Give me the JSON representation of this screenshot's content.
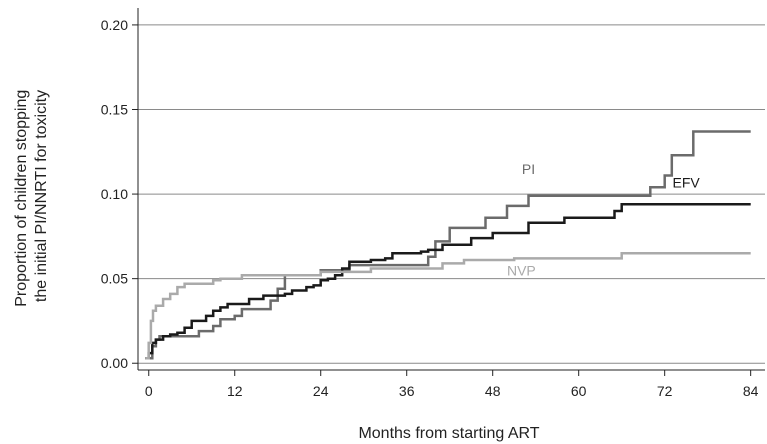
{
  "chart_data": {
    "type": "line",
    "step": true,
    "xlabel": "Months from starting ART",
    "ylabel_lines": [
      "Proportion of children stopping",
      "the initial PI/NNRTI for toxicity"
    ],
    "xlim": [
      -1.5,
      86
    ],
    "ylim": [
      -0.004,
      0.21
    ],
    "xticks": [
      0,
      12,
      24,
      36,
      48,
      60,
      72,
      84
    ],
    "xtick_labels": [
      "0",
      "12",
      "24",
      "36",
      "48",
      "60",
      "72",
      "84"
    ],
    "yticks": [
      0.0,
      0.05,
      0.1,
      0.15,
      0.2
    ],
    "ytick_labels": [
      "0.00",
      "0.05",
      "0.10",
      "0.15",
      "0.20"
    ],
    "grid": "horizontal",
    "series": [
      {
        "name": "PI",
        "color": "#6b6b6b",
        "label_at": [
          53,
          0.112
        ],
        "points": [
          [
            0,
            0.003
          ],
          [
            0.5,
            0.01
          ],
          [
            1,
            0.014
          ],
          [
            1.5,
            0.016
          ],
          [
            7,
            0.016
          ],
          [
            7,
            0.019
          ],
          [
            9,
            0.022
          ],
          [
            10,
            0.026
          ],
          [
            12,
            0.028
          ],
          [
            13,
            0.032
          ],
          [
            17,
            0.037
          ],
          [
            18,
            0.044
          ],
          [
            19,
            0.052
          ],
          [
            23,
            0.052
          ],
          [
            24,
            0.055
          ],
          [
            28,
            0.058
          ],
          [
            38,
            0.058
          ],
          [
            39,
            0.063
          ],
          [
            40,
            0.072
          ],
          [
            42,
            0.08
          ],
          [
            46,
            0.08
          ],
          [
            47,
            0.086
          ],
          [
            50,
            0.093
          ],
          [
            53,
            0.099
          ],
          [
            70,
            0.099
          ],
          [
            70,
            0.104
          ],
          [
            72,
            0.111
          ],
          [
            73,
            0.123
          ],
          [
            76,
            0.137
          ],
          [
            84,
            0.137
          ]
        ]
      },
      {
        "name": "EFV",
        "color": "#1a1a1a",
        "label_at": [
          75,
          0.104
        ],
        "points": [
          [
            -0.5,
            0.003
          ],
          [
            0,
            0.006
          ],
          [
            0.5,
            0.012
          ],
          [
            1,
            0.014
          ],
          [
            2,
            0.016
          ],
          [
            3,
            0.017
          ],
          [
            4,
            0.018
          ],
          [
            5,
            0.021
          ],
          [
            6,
            0.025
          ],
          [
            8,
            0.028
          ],
          [
            9,
            0.031
          ],
          [
            10,
            0.033
          ],
          [
            11,
            0.035
          ],
          [
            14,
            0.035
          ],
          [
            14,
            0.038
          ],
          [
            16,
            0.04
          ],
          [
            19,
            0.041
          ],
          [
            20,
            0.043
          ],
          [
            22,
            0.045
          ],
          [
            23,
            0.046
          ],
          [
            24,
            0.049
          ],
          [
            25,
            0.05
          ],
          [
            26,
            0.052
          ],
          [
            27,
            0.056
          ],
          [
            28,
            0.06
          ],
          [
            31,
            0.06
          ],
          [
            31,
            0.061
          ],
          [
            33,
            0.062
          ],
          [
            34,
            0.065
          ],
          [
            38,
            0.065
          ],
          [
            38,
            0.066
          ],
          [
            39,
            0.067
          ],
          [
            41,
            0.07
          ],
          [
            45,
            0.07
          ],
          [
            45,
            0.074
          ],
          [
            48,
            0.077
          ],
          [
            53,
            0.077
          ],
          [
            53,
            0.083
          ],
          [
            57,
            0.083
          ],
          [
            58,
            0.086
          ],
          [
            65,
            0.086
          ],
          [
            65,
            0.09
          ],
          [
            66,
            0.094
          ],
          [
            84,
            0.094
          ]
        ]
      },
      {
        "name": "NVP",
        "color": "#aaaaaa",
        "label_at": [
          52,
          0.052
        ],
        "points": [
          [
            -0.5,
            0.003
          ],
          [
            0,
            0.012
          ],
          [
            0.3,
            0.025
          ],
          [
            0.6,
            0.031
          ],
          [
            1,
            0.034
          ],
          [
            2,
            0.038
          ],
          [
            3,
            0.041
          ],
          [
            4,
            0.045
          ],
          [
            5,
            0.047
          ],
          [
            8,
            0.047
          ],
          [
            9,
            0.049
          ],
          [
            10,
            0.05
          ],
          [
            13,
            0.052
          ],
          [
            24,
            0.052
          ],
          [
            24,
            0.054
          ],
          [
            30,
            0.054
          ],
          [
            31,
            0.056
          ],
          [
            40,
            0.056
          ],
          [
            41,
            0.059
          ],
          [
            44,
            0.061
          ],
          [
            50,
            0.061
          ],
          [
            51,
            0.062
          ],
          [
            65,
            0.062
          ],
          [
            66,
            0.065
          ],
          [
            84,
            0.065
          ]
        ]
      }
    ]
  }
}
